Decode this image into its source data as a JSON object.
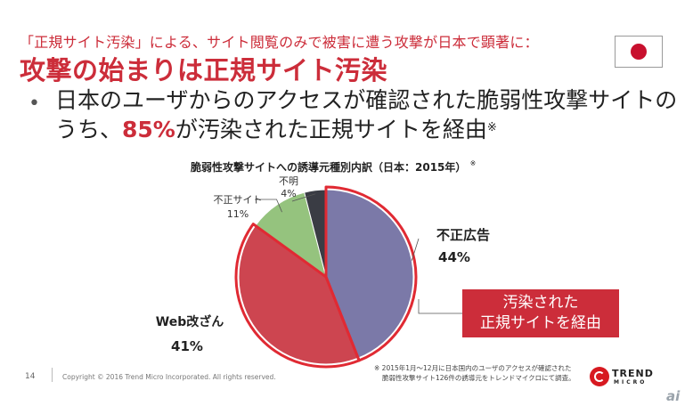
{
  "slide": {
    "subtitle": "「正規サイト汚染」による、サイト閲覧のみで被害に遭う攻撃が日本で顕著に：",
    "title": "攻撃の始まりは正規サイト汚染",
    "bullet": {
      "text_before": "日本のユーザからのアクセスが確認された脆弱性攻撃サイトのうち、",
      "highlight": "85%",
      "text_after": "が汚染された正規サイトを経由",
      "mark": "※"
    },
    "callout": {
      "line1": "汚染された",
      "line2": "正規サイトを経由"
    },
    "footnote": {
      "line1": "※ 2015年1月～12月に日本国内のユーザのアクセスが確認された",
      "line2": "脆弱性攻撃サイト126件の誘導元をトレンドマイクロにて調査。"
    },
    "page_number": "14",
    "copyright": "Copyright © 2016 Trend Micro Incorporated. All rights reserved.",
    "logo": {
      "line1": "TREND",
      "line2": "MICRO"
    },
    "watermark": "ai",
    "flag_icon": "japan-flag-icon"
  },
  "chart_data": {
    "type": "pie",
    "title": "脆弱性攻撃サイトへの誘導元種別内訳（日本：2015年）",
    "title_mark": "※",
    "unit": "%",
    "slices": [
      {
        "name": "不正広告",
        "value": 44,
        "label": "44%",
        "color": "#7b79a8"
      },
      {
        "name": "Web改ざん",
        "value": 41,
        "label": "41%",
        "color": "#cd4550"
      },
      {
        "name": "不正サイト",
        "value": 11,
        "label": "11%",
        "color": "#95c37e"
      },
      {
        "name": "不明",
        "value": 4,
        "label": "4%",
        "color": "#3a3c44"
      }
    ],
    "highlighted": [
      "不正広告",
      "Web改ざん"
    ],
    "highlight_color": "#e02a33"
  }
}
